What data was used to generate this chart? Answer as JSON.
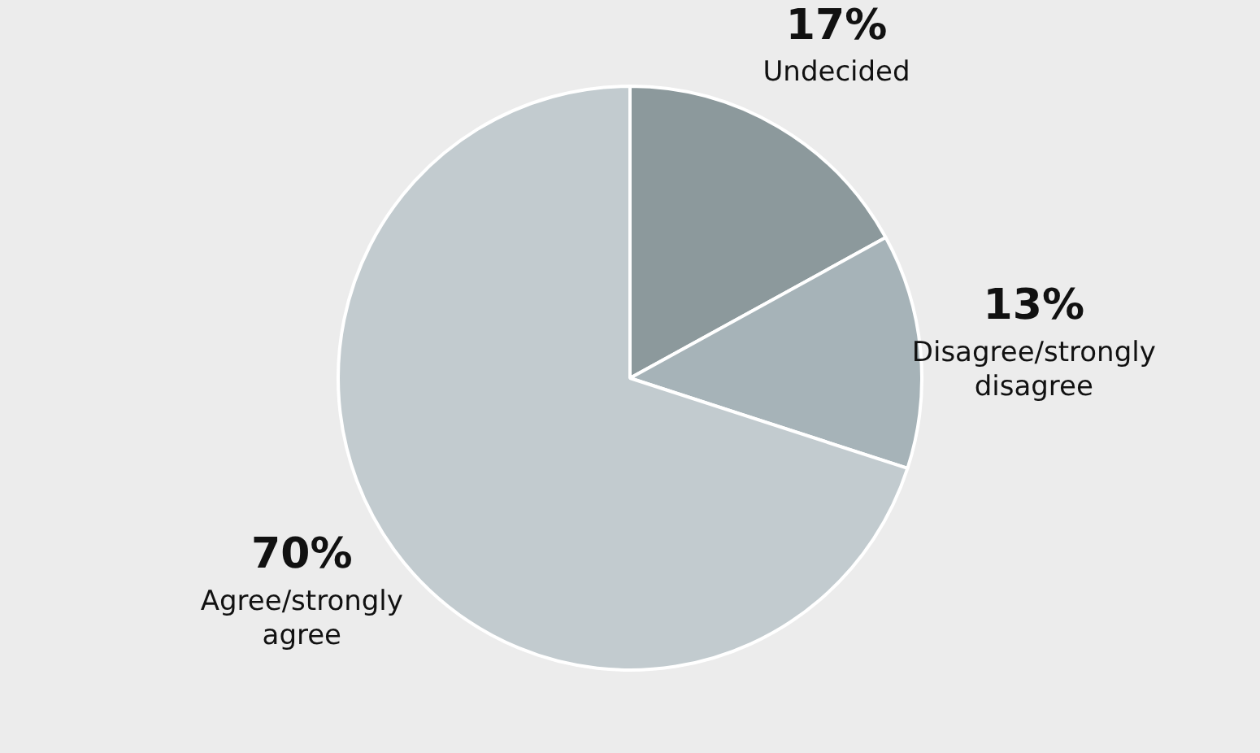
{
  "chart_data": {
    "type": "pie",
    "categories": [
      "Undecided",
      "Disagree/strongly disagree",
      "Agree/strongly agree"
    ],
    "values": [
      17,
      13,
      70
    ],
    "colors": [
      "#8c999c",
      "#a6b3b8",
      "#c2cbcf"
    ],
    "value_labels": [
      "17%",
      "13%",
      "70%"
    ]
  }
}
